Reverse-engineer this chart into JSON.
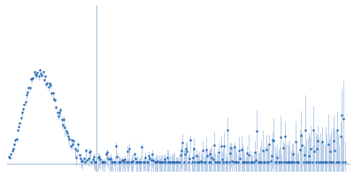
{
  "background_color": "#ffffff",
  "dot_color": "#2a6db5",
  "errorbar_color": "#b0c8e8",
  "axisline_color": "#a0b8d8",
  "figsize": [
    4.0,
    2.0
  ],
  "dpi": 100,
  "xlim": [
    0.005,
    0.62
  ],
  "ylim": [
    -0.005,
    0.095
  ],
  "hline_y": 0.0,
  "vline_x": 0.165
}
